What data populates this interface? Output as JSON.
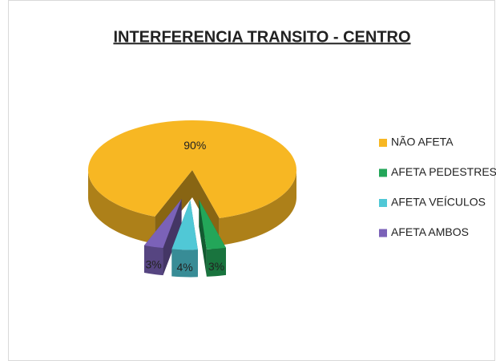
{
  "chart_data": {
    "type": "pie3d",
    "title": "INTERFERENCIA TRANSITO - CENTRO",
    "categories": [
      "NÃO AFETA",
      "AFETA PEDESTRES",
      "AFETA VEÍCULOS",
      "AFETA AMBOS"
    ],
    "values": [
      90,
      3,
      4,
      3
    ],
    "value_labels": [
      "90%",
      "3%",
      "4%",
      "3%"
    ],
    "colors": [
      "#F7B723",
      "#23A659",
      "#50C8D6",
      "#7B62B8"
    ],
    "legend": "right"
  }
}
